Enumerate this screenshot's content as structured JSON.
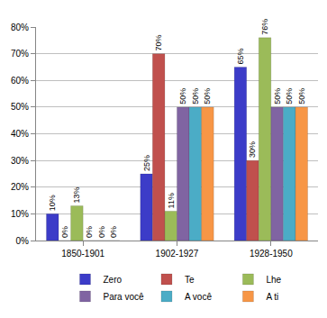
{
  "chart_data": {
    "type": "bar",
    "categories": [
      "1850-1901",
      "1902-1927",
      "1928-1950"
    ],
    "series": [
      {
        "name": "Zero",
        "color": "#3c3cc8",
        "values": [
          10,
          25,
          65
        ],
        "value_labels": [
          "10%",
          "25%",
          "65%"
        ]
      },
      {
        "name": "Te",
        "color": "#c0504d",
        "values": [
          0,
          70,
          30
        ],
        "value_labels": [
          "0%",
          "70%",
          "30%"
        ]
      },
      {
        "name": "Lhe",
        "color": "#9bbb59",
        "values": [
          13,
          11,
          76
        ],
        "value_labels": [
          "13%",
          "11%",
          "76%"
        ]
      },
      {
        "name": "Para você",
        "color": "#8064a2",
        "values": [
          0,
          50,
          50
        ],
        "value_labels": [
          "0%",
          "50%",
          "50%"
        ]
      },
      {
        "name": "A você",
        "color": "#4bacc6",
        "values": [
          0,
          50,
          50
        ],
        "value_labels": [
          "0%",
          "50%",
          "50%"
        ]
      },
      {
        "name": "A ti",
        "color": "#f79646",
        "values": [
          0,
          50,
          50
        ],
        "value_labels": [
          "0%",
          "50%",
          "50%"
        ]
      }
    ],
    "ylim": [
      0,
      80
    ],
    "yticks": [
      {
        "value": 0,
        "label": "0%"
      },
      {
        "value": 10,
        "label": "10%"
      },
      {
        "value": 20,
        "label": "20%"
      },
      {
        "value": 30,
        "label": "30%"
      },
      {
        "value": 40,
        "label": "40%"
      },
      {
        "value": 50,
        "label": "50%"
      },
      {
        "value": 60,
        "label": "60%"
      },
      {
        "value": 70,
        "label": "70%"
      },
      {
        "value": 80,
        "label": "80%"
      }
    ],
    "grid": true,
    "legend": "bottom",
    "data_labels": true
  }
}
